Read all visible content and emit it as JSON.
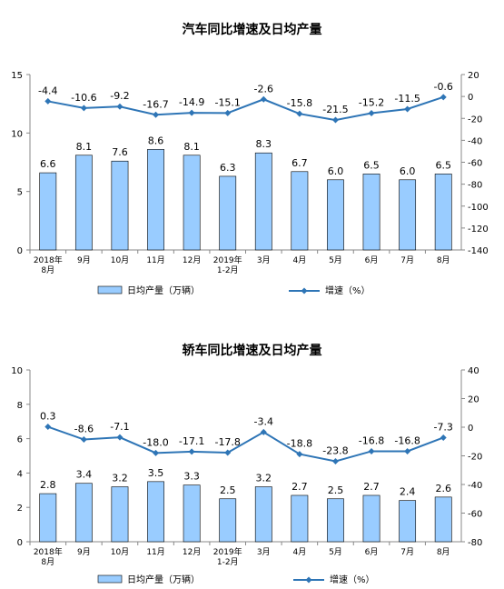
{
  "categories": [
    "2018年\n8月",
    "9月",
    "10月",
    "11月",
    "12月",
    "2019年\n1-2月",
    "3月",
    "4月",
    "5月",
    "6月",
    "7月",
    "8月"
  ],
  "chart_data": [
    {
      "type": "bar",
      "title": "汽车同比增速及日均产量",
      "left_axis": {
        "ylim": [
          0,
          15
        ],
        "ticks": [
          0,
          5,
          10,
          15
        ]
      },
      "right_axis": {
        "ylim": [
          -140,
          20
        ],
        "ticks": [
          20,
          0,
          -20,
          -40,
          -60,
          -80,
          -100,
          -120,
          -140
        ]
      },
      "series": [
        {
          "name": "日均产量（万辆）",
          "kind": "bar",
          "axis": "left",
          "values": [
            6.6,
            8.1,
            7.6,
            8.6,
            8.1,
            6.3,
            8.3,
            6.7,
            6.0,
            6.5,
            6.0,
            6.5
          ]
        },
        {
          "name": "增速（%）",
          "kind": "line",
          "axis": "right",
          "values": [
            -4.4,
            -10.6,
            -9.2,
            -16.7,
            -14.9,
            -15.1,
            -2.6,
            -15.8,
            -21.5,
            -15.2,
            -11.5,
            -0.6
          ]
        }
      ],
      "colors": {
        "bar": "#99ccff",
        "line": "#2e75b6"
      },
      "legend_position": "bottom"
    },
    {
      "type": "bar",
      "title": "轿车同比增速及日均产量",
      "left_axis": {
        "ylim": [
          0,
          10
        ],
        "ticks": [
          0,
          2,
          4,
          6,
          8,
          10
        ]
      },
      "right_axis": {
        "ylim": [
          -80,
          40
        ],
        "ticks": [
          40,
          20,
          0,
          -20,
          -40,
          -60,
          -80
        ]
      },
      "series": [
        {
          "name": "日均产量（万辆）",
          "kind": "bar",
          "axis": "left",
          "values": [
            2.8,
            3.4,
            3.2,
            3.5,
            3.3,
            2.5,
            3.2,
            2.7,
            2.5,
            2.7,
            2.4,
            2.6
          ]
        },
        {
          "name": "增速（%）",
          "kind": "line",
          "axis": "right",
          "values": [
            0.3,
            -8.6,
            -7.1,
            -18.0,
            -17.1,
            -17.8,
            -3.4,
            -18.8,
            -23.8,
            -16.8,
            -16.8,
            -7.3
          ]
        }
      ],
      "colors": {
        "bar": "#99ccff",
        "line": "#2e75b6"
      },
      "legend_position": "bottom"
    }
  ]
}
